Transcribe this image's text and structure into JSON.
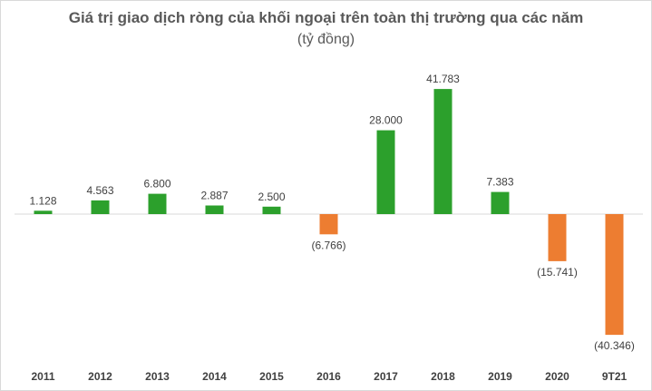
{
  "chart_data": {
    "type": "bar",
    "title": "Giá trị giao dịch ròng của khối ngoại trên toàn thị trường qua các năm",
    "subtitle": "(tỷ đồng)",
    "categories": [
      "2011",
      "2012",
      "2013",
      "2014",
      "2015",
      "2016",
      "2017",
      "2018",
      "2019",
      "2020",
      "9T21"
    ],
    "values": [
      1128,
      4563,
      6800,
      2887,
      2500,
      -6766,
      28000,
      41783,
      7383,
      -15741,
      -40346
    ],
    "value_labels": [
      "1.128",
      "4.563",
      "6.800",
      "2.887",
      "2.500",
      "(6.766)",
      "28.000",
      "41.783",
      "7.383",
      "(15.741)",
      "(40.346)"
    ],
    "colors": {
      "positive": "#2ca02c",
      "negative": "#ed7d31"
    },
    "ylim": [
      -42000,
      44000
    ],
    "grid": false,
    "legend": "none"
  }
}
